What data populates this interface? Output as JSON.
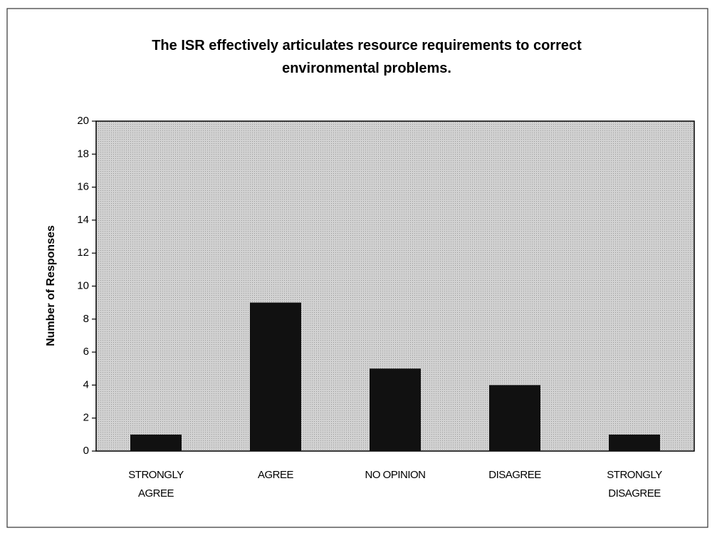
{
  "chart_data": {
    "type": "bar",
    "title": "The ISR effectively articulates resource requirements to correct environmental problems.",
    "y_label": "Number of Responses",
    "categories": [
      "STRONGLY AGREE",
      "AGREE",
      "NO OPINION",
      "DISAGREE",
      "STRONGLY DISAGREE"
    ],
    "values": [
      1,
      9,
      5,
      4,
      1
    ],
    "color": "#111111",
    "ylim": [
      0,
      20
    ],
    "yticks": [
      0,
      2,
      4,
      6,
      8,
      10,
      12,
      14,
      16,
      18,
      20
    ],
    "grid": false
  }
}
